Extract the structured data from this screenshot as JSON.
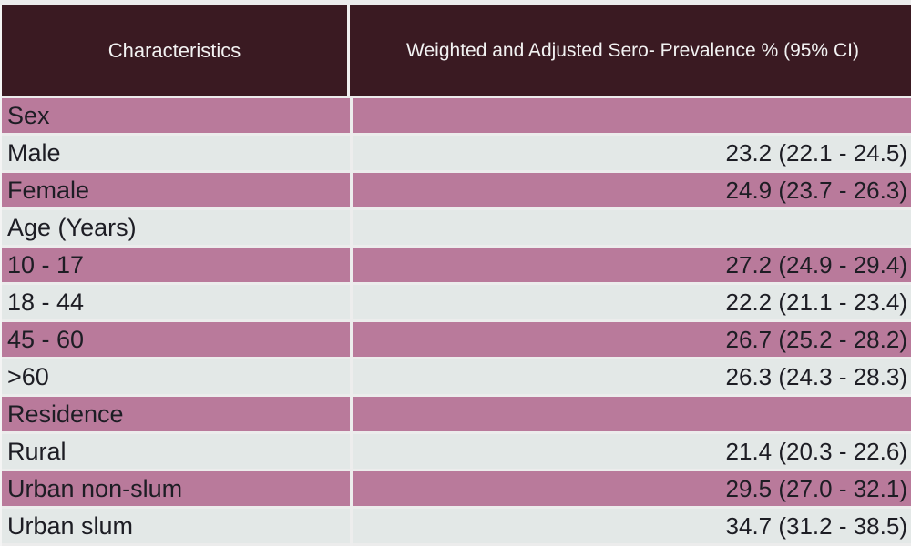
{
  "table": {
    "headers": [
      "Characteristics",
      "Weighted and Adjusted Sero- Prevalence % (95% CI)"
    ],
    "rows": [
      {
        "label": "Sex",
        "value": "",
        "style": "purple"
      },
      {
        "label": "Male",
        "value": "23.2 (22.1 - 24.5)",
        "style": "light"
      },
      {
        "label": "Female",
        "value": "24.9 (23.7 - 26.3)",
        "style": "purple"
      },
      {
        "label": "Age (Years)",
        "value": "",
        "style": "light"
      },
      {
        "label": "10 - 17",
        "value": "27.2 (24.9 - 29.4)",
        "style": "purple"
      },
      {
        "label": "18 - 44",
        "value": "22.2 (21.1 - 23.4)",
        "style": "light"
      },
      {
        "label": "45 - 60",
        "value": "26.7 (25.2 - 28.2)",
        "style": "purple"
      },
      {
        "label": ">60",
        "value": "26.3 (24.3 - 28.3)",
        "style": "light"
      },
      {
        "label": "Residence",
        "value": "",
        "style": "purple"
      },
      {
        "label": "Rural",
        "value": "21.4 (20.3 - 22.6)",
        "style": "light"
      },
      {
        "label": "Urban non-slum",
        "value": "29.5 (27.0 - 32.1)",
        "style": "purple"
      },
      {
        "label": "Urban slum",
        "value": "34.7 (31.2 - 38.5)",
        "style": "light"
      }
    ]
  },
  "colors": {
    "header_bg": "#3a1a22",
    "row_purple": "#b97a9b",
    "row_light": "#e3e8e7"
  }
}
